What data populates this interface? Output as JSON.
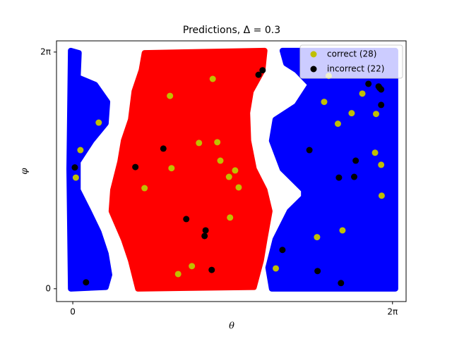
{
  "chart_data": {
    "type": "scatter",
    "title": "Predictions, Δ = 0.3",
    "x_label": "θ",
    "y_label": "φ",
    "xlim": [
      -0.32,
      6.55
    ],
    "ylim": [
      -0.34,
      6.58
    ],
    "xticks": [
      0,
      {
        "value": 6.283,
        "label": "2π"
      }
    ],
    "yticks": [
      0,
      {
        "value": 6.283,
        "label": "2π"
      }
    ],
    "legend": "upper right",
    "regions": [
      {
        "color": "#0000ff",
        "x": [
          -0.04,
          0.12,
          0.1,
          0.44,
          0.68,
          0.65,
          0.37,
          0.1,
          0.1,
          0.31,
          0.51,
          0.65,
          0.72,
          0.65,
          -0.04,
          -0.07
        ],
        "y": [
          6.32,
          6.26,
          5.61,
          5.42,
          4.96,
          4.39,
          3.93,
          3.37,
          2.62,
          2.06,
          1.5,
          0.93,
          0.37,
          0.04,
          0,
          3.18
        ]
      },
      {
        "color": "#ff0000",
        "x": [
          1.41,
          3.77,
          3.73,
          3.5,
          3.43,
          3.45,
          3.56,
          3.77,
          3.87,
          3.77,
          3.7,
          3.56,
          1.28,
          1.14,
          1.0,
          0.76,
          0.79,
          0.93,
          1.0,
          1.14,
          1.21,
          1.35
        ],
        "y": [
          6.26,
          6.32,
          5.8,
          5.24,
          4.67,
          3.93,
          3.18,
          2.62,
          2.06,
          1.31,
          0.75,
          0.04,
          0,
          0.75,
          1.31,
          2.06,
          2.62,
          3.37,
          3.93,
          4.49,
          5.24,
          5.8
        ]
      },
      {
        "color": "#0000ff",
        "x": [
          4.12,
          6.34,
          6.34,
          3.91,
          3.84,
          3.98,
          4.26,
          4.54,
          4.54,
          4.12,
          3.91,
          3.98,
          4.4,
          4.67,
          4.4,
          4.19
        ],
        "y": [
          6.32,
          6.32,
          0,
          0,
          0.56,
          1.31,
          2.06,
          2.43,
          2.62,
          3.18,
          3.93,
          4.49,
          4.86,
          5.42,
          5.8,
          5.98
        ]
      }
    ],
    "series": [
      {
        "name": "correct (28)",
        "color": "#bfbf00",
        "x": [
          0.51,
          0.15,
          0.06,
          1.91,
          2.75,
          1.94,
          1.41,
          2.48,
          2.84,
          2.9,
          3.07,
          3.19,
          3.26,
          3.09,
          2.34,
          2.07,
          3.99,
          4.8,
          4.94,
          5.03,
          5.21,
          5.3,
          5.48,
          5.69,
          5.96,
          5.94,
          6.06,
          6.07
        ],
        "y": [
          4.41,
          3.68,
          2.95,
          5.12,
          5.57,
          3.2,
          2.67,
          3.87,
          3.89,
          3.4,
          2.97,
          3.14,
          2.69,
          1.89,
          0.6,
          0.39,
          0.54,
          1.37,
          4.96,
          5.65,
          4.38,
          1.55,
          4.66,
          5.18,
          4.64,
          3.61,
          3.29,
          2.47
        ]
      },
      {
        "name": "incorrect (22)",
        "color": "#000000",
        "x": [
          0.26,
          0.04,
          1.23,
          1.78,
          2.23,
          2.61,
          2.59,
          2.73,
          3.65,
          3.73,
          4.12,
          4.65,
          4.81,
          5.23,
          5.27,
          5.53,
          5.56,
          5.81,
          6.01,
          6.06,
          6.06,
          6.03
        ],
        "y": [
          0.17,
          3.22,
          3.23,
          3.72,
          1.85,
          1.55,
          1.4,
          0.5,
          5.68,
          5.8,
          1.03,
          3.68,
          0.47,
          2.95,
          0.15,
          2.97,
          3.4,
          5.44,
          5.37,
          5.29,
          4.88,
          5.33
        ]
      }
    ]
  }
}
